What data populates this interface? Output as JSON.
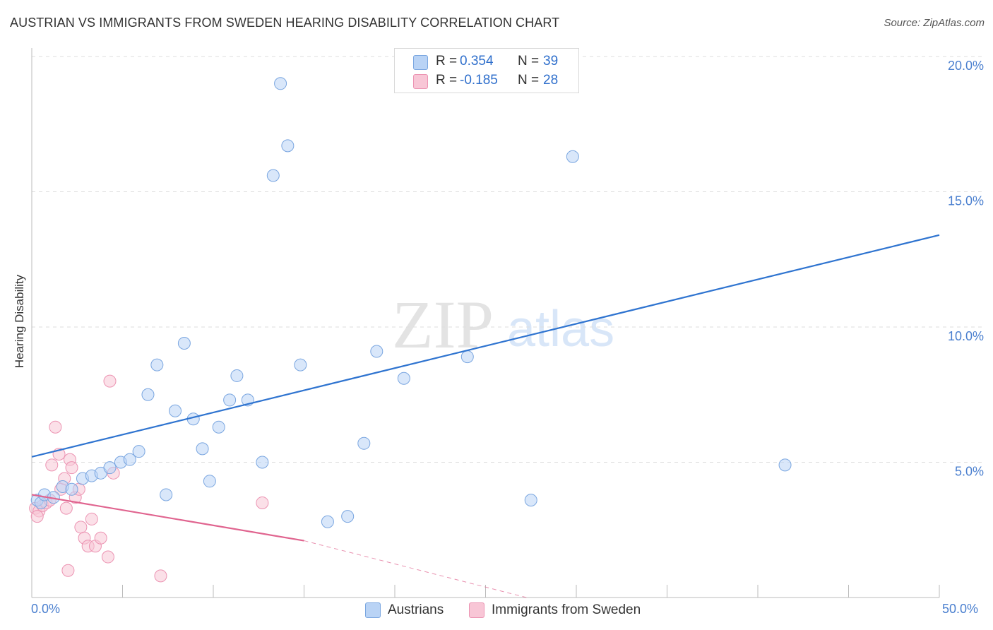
{
  "title": "AUSTRIAN VS IMMIGRANTS FROM SWEDEN HEARING DISABILITY CORRELATION CHART",
  "source": "Source: ZipAtlas.com",
  "watermark": {
    "zip": "ZIP",
    "atlas": "atlas"
  },
  "legend": {
    "series1": {
      "r_label": "R =",
      "r_value": "0.354",
      "n_label": "N =",
      "n_value": "39"
    },
    "series2": {
      "r_label": "R =",
      "r_value": "-0.185",
      "n_label": "N =",
      "n_value": "28"
    }
  },
  "colors": {
    "blue_fill": "#b9d3f5",
    "blue_stroke": "#7aa6e0",
    "blue_line": "#2f74d0",
    "pink_fill": "#f8c6d6",
    "pink_stroke": "#ec93b2",
    "pink_line": "#e0648f",
    "grid": "#dedede",
    "tick_label": "#4a7fcf"
  },
  "chart_data": {
    "type": "scatter",
    "title": "AUSTRIAN VS IMMIGRANTS FROM SWEDEN HEARING DISABILITY CORRELATION CHART",
    "xlabel": "",
    "ylabel": "Hearing Disability",
    "xlim": [
      0,
      50
    ],
    "ylim": [
      0,
      20
    ],
    "x_tick_labels": {
      "min": "0.0%",
      "max": "50.0%"
    },
    "y_ticks": [
      5,
      10,
      15,
      20
    ],
    "y_tick_labels": [
      "5.0%",
      "10.0%",
      "15.0%",
      "20.0%"
    ],
    "grid": true,
    "legend_position": "top-center",
    "series": [
      {
        "name": "Austrians",
        "r": 0.354,
        "n": 39,
        "trend": {
          "x_start": 0,
          "y_start": 5.2,
          "x_end": 50,
          "y_end": 13.4
        },
        "points": [
          [
            0.3,
            3.6
          ],
          [
            0.5,
            3.5
          ],
          [
            0.7,
            3.8
          ],
          [
            1.2,
            3.7
          ],
          [
            1.7,
            4.1
          ],
          [
            2.2,
            4.0
          ],
          [
            2.8,
            4.4
          ],
          [
            3.3,
            4.5
          ],
          [
            3.8,
            4.6
          ],
          [
            4.3,
            4.8
          ],
          [
            4.9,
            5.0
          ],
          [
            5.4,
            5.1
          ],
          [
            5.9,
            5.4
          ],
          [
            6.4,
            7.5
          ],
          [
            6.9,
            8.6
          ],
          [
            7.4,
            3.8
          ],
          [
            7.9,
            6.9
          ],
          [
            8.4,
            9.4
          ],
          [
            8.9,
            6.6
          ],
          [
            9.4,
            5.5
          ],
          [
            9.8,
            4.3
          ],
          [
            10.3,
            6.3
          ],
          [
            10.9,
            7.3
          ],
          [
            11.3,
            8.2
          ],
          [
            11.9,
            7.3
          ],
          [
            12.7,
            5.0
          ],
          [
            13.3,
            15.6
          ],
          [
            13.7,
            19.0
          ],
          [
            14.1,
            16.7
          ],
          [
            14.8,
            8.6
          ],
          [
            16.3,
            2.8
          ],
          [
            17.4,
            3.0
          ],
          [
            18.3,
            5.7
          ],
          [
            19.0,
            9.1
          ],
          [
            20.5,
            8.1
          ],
          [
            24.0,
            8.9
          ],
          [
            27.5,
            3.6
          ],
          [
            29.8,
            16.3
          ],
          [
            41.5,
            4.9
          ]
        ]
      },
      {
        "name": "Immigrants from Sweden",
        "r": -0.185,
        "n": 28,
        "trend": {
          "x_start": 0,
          "y_start": 3.8,
          "x_end": 15,
          "y_end": 2.1,
          "dashed_until_x": 50,
          "dashed_until_y": -3.9
        },
        "points": [
          [
            0.2,
            3.3
          ],
          [
            0.4,
            3.2
          ],
          [
            0.6,
            3.4
          ],
          [
            0.8,
            3.5
          ],
          [
            1.0,
            3.6
          ],
          [
            1.1,
            4.9
          ],
          [
            1.3,
            6.3
          ],
          [
            1.5,
            5.3
          ],
          [
            1.6,
            4.0
          ],
          [
            1.8,
            4.4
          ],
          [
            1.9,
            3.3
          ],
          [
            2.1,
            5.1
          ],
          [
            2.2,
            4.8
          ],
          [
            2.4,
            3.7
          ],
          [
            2.6,
            4.0
          ],
          [
            2.7,
            2.6
          ],
          [
            2.9,
            2.2
          ],
          [
            3.1,
            1.9
          ],
          [
            3.3,
            2.9
          ],
          [
            3.5,
            1.9
          ],
          [
            3.8,
            2.2
          ],
          [
            4.2,
            1.5
          ],
          [
            4.3,
            8.0
          ],
          [
            4.5,
            4.6
          ],
          [
            2.0,
            1.0
          ],
          [
            7.1,
            0.8
          ],
          [
            12.7,
            3.5
          ],
          [
            0.3,
            3.0
          ]
        ]
      }
    ]
  },
  "bottom_legend": {
    "item1": "Austrians",
    "item2": "Immigrants from Sweden"
  }
}
